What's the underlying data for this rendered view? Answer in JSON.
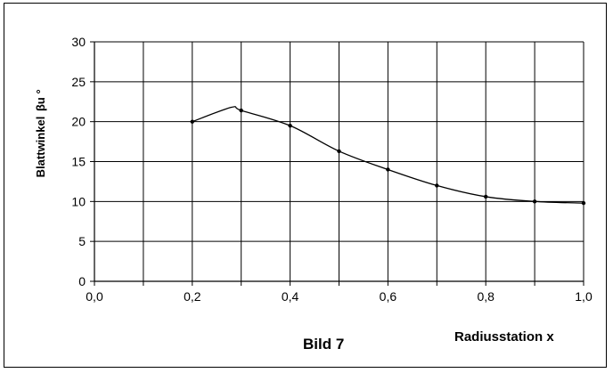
{
  "chart_data": {
    "type": "line",
    "caption": "Bild 7",
    "xlabel": "Radiusstation x",
    "ylabel": "Blattwinkel",
    "ylabel_symbol": "βu °",
    "x_ticks": [
      "0,0",
      "0,2",
      "0,4",
      "0,6",
      "0,8",
      "1,0"
    ],
    "y_ticks": [
      "0",
      "5",
      "10",
      "15",
      "20",
      "25",
      "30"
    ],
    "xlim": [
      0,
      1.0
    ],
    "ylim": [
      0,
      30
    ],
    "grid": true,
    "series": [
      {
        "x": [
          0.2,
          0.3,
          0.4,
          0.5,
          0.6,
          0.7,
          0.8,
          0.9,
          1.0
        ],
        "y": [
          20.0,
          21.4,
          19.5,
          16.3,
          14.0,
          12.0,
          10.6,
          10.0,
          9.8
        ]
      }
    ],
    "curve_y_at_0_28": 21.8
  }
}
